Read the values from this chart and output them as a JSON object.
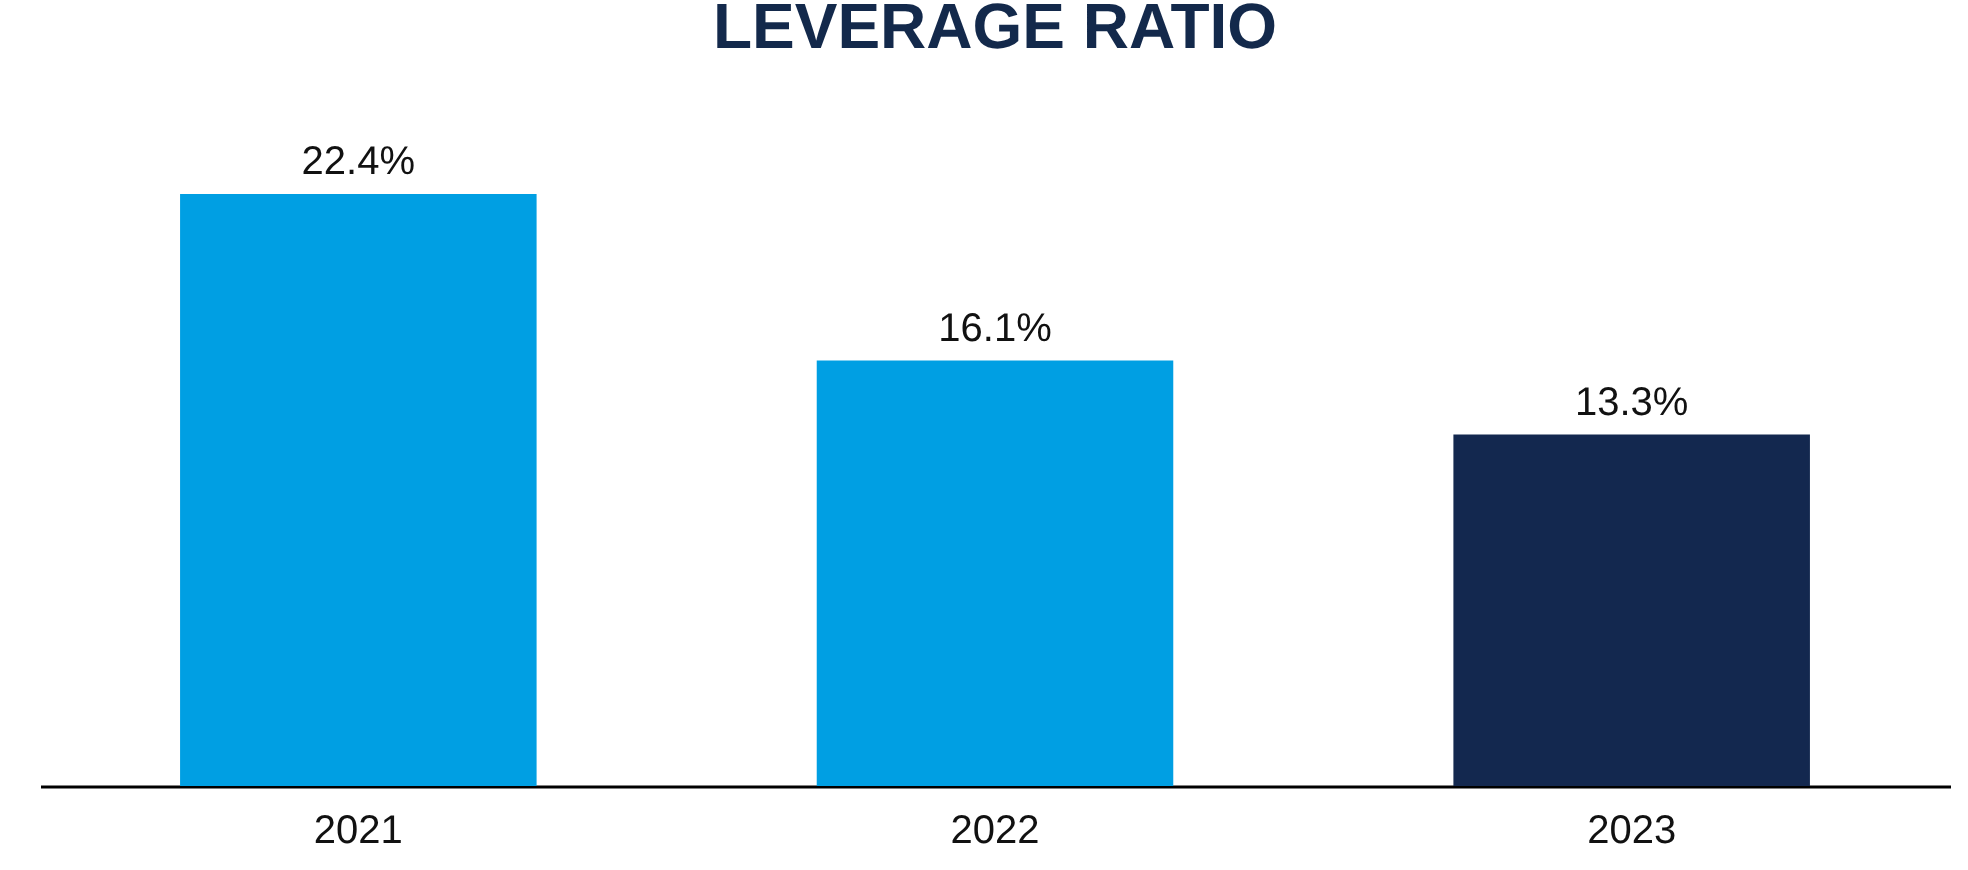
{
  "chart_data": {
    "type": "bar",
    "title": "LEVERAGE RATIO",
    "categories": [
      "2021",
      "2022",
      "2023"
    ],
    "values": [
      22.4,
      16.1,
      13.3
    ],
    "colors": [
      "#009fe3",
      "#009fe3",
      "#13284f"
    ],
    "value_labels": [
      "22.4%",
      "16.1%",
      "13.3%"
    ]
  }
}
